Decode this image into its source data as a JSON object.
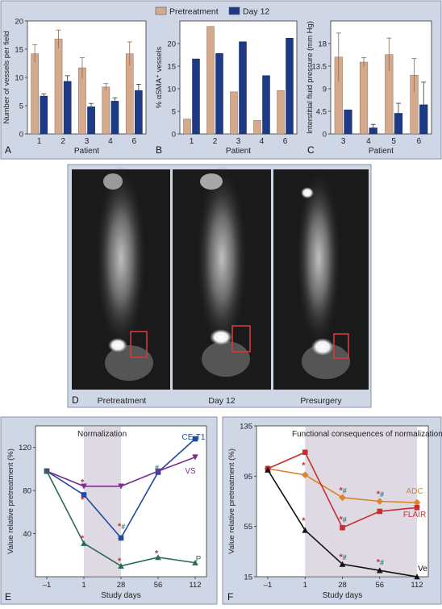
{
  "legend_top": [
    {
      "label": "Pretreatment",
      "color": "#d4a98c"
    },
    {
      "label": "Day 12",
      "color": "#1c3a85"
    }
  ],
  "panel_letters": [
    "A",
    "B",
    "C",
    "D",
    "E",
    "F"
  ],
  "colors": {
    "panel_bg": "#cfd6e6",
    "plot_bg": "#ffffff",
    "pretreatment": "#d4a98c",
    "day12": "#1c3a85",
    "shade": "#ded9e3",
    "mri_bg": "#1a1a1a",
    "box_red": "#d63a3a",
    "star_red": "#c23a3a",
    "hash_teal": "#2e7e80",
    "cet1": "#1f4aa0",
    "vs": "#7a2f8f",
    "p": "#2a6a55",
    "adc": "#d9852a",
    "flair": "#c83030",
    "ve": "#111111"
  },
  "panel_d": {
    "labels": [
      "Pretreatment",
      "Day 12",
      "Presurgery"
    ]
  },
  "chart_data": [
    {
      "id": "A",
      "type": "bar",
      "categories": [
        "1",
        "2",
        "3",
        "4",
        "6"
      ],
      "series": [
        {
          "name": "Pretreatment",
          "values": [
            14.2,
            16.8,
            11.7,
            8.3,
            14.2
          ],
          "errors": [
            1.6,
            1.6,
            1.8,
            0.6,
            2.1
          ]
        },
        {
          "name": "Day 12",
          "values": [
            6.7,
            9.3,
            4.8,
            5.8,
            7.7
          ],
          "errors": [
            0.4,
            1.0,
            0.6,
            0.6,
            1.1
          ]
        }
      ],
      "xlabel": "Patient",
      "ylabel": "Number of vessels per field",
      "ylim": [
        0,
        20
      ],
      "yticks": [
        "0",
        "5",
        "10",
        "15",
        "20"
      ]
    },
    {
      "id": "B",
      "type": "bar",
      "categories": [
        "1",
        "2",
        "3",
        "4",
        "6"
      ],
      "series": [
        {
          "name": "Pretreatment",
          "values": [
            3.3,
            23.8,
            9.3,
            3.0,
            9.6
          ]
        },
        {
          "name": "Day 12",
          "values": [
            16.6,
            17.8,
            20.4,
            12.9,
            21.2
          ]
        }
      ],
      "xlabel": "Patient",
      "ylabel": "% αSMA⁺ vessels",
      "ylim": [
        0,
        25
      ],
      "yticks": [
        "0",
        "5",
        "10",
        "15",
        "20"
      ]
    },
    {
      "id": "C",
      "type": "bar",
      "categories": [
        "3",
        "4",
        "5",
        "6"
      ],
      "series": [
        {
          "name": "Pretreatment",
          "values": [
            15.3,
            14.3,
            15.8,
            11.7
          ],
          "errors": [
            4.8,
            0.9,
            3.3,
            3.3
          ]
        },
        {
          "name": "Day 12",
          "values": [
            4.8,
            1.2,
            4.1,
            5.8
          ],
          "errors": [
            0,
            0.7,
            2.0,
            4.5
          ]
        }
      ],
      "xlabel": "Patient",
      "ylabel": "Interstitial fluid pressure (mm Hg)",
      "ylim": [
        0,
        22.5
      ],
      "yticks": [
        "0",
        "4.5",
        "9",
        "13.5",
        "18"
      ]
    },
    {
      "id": "E",
      "type": "line",
      "title": "Normalization",
      "x": [
        "–1",
        "1",
        "28",
        "56",
        "112"
      ],
      "series": [
        {
          "name": "CE-T1",
          "values": [
            98,
            76,
            36,
            97,
            128
          ]
        },
        {
          "name": "VS",
          "values": [
            98,
            84,
            84,
            98,
            111
          ]
        },
        {
          "name": "P",
          "values": [
            98,
            31,
            10,
            18,
            13
          ]
        }
      ],
      "annotations": [
        {
          "x_index": 1,
          "y": 88,
          "text": "*"
        },
        {
          "x_index": 1,
          "y": 72,
          "text": "*"
        },
        {
          "x_index": 1,
          "y": 36,
          "text": "*"
        },
        {
          "x_index": 2,
          "y": 47,
          "text": "*#"
        },
        {
          "x_index": 2,
          "y": 15,
          "text": "*"
        },
        {
          "x_index": 3,
          "y": 102,
          "text": "#"
        },
        {
          "x_index": 3,
          "y": 22,
          "text": "*"
        }
      ],
      "xlabel": "Study days",
      "ylabel": "Value relative pretreatment (%)",
      "ylim": [
        0,
        140
      ],
      "yticks": [
        "40",
        "80",
        "120"
      ]
    },
    {
      "id": "F",
      "type": "line",
      "title": "Functional consequences of normalization",
      "x": [
        "–1",
        "1",
        "28",
        "56",
        "112"
      ],
      "series": [
        {
          "name": "ADC",
          "values": [
            101,
            96,
            78,
            75,
            74
          ]
        },
        {
          "name": "FLAIR",
          "values": [
            101,
            114,
            54,
            67,
            70
          ]
        },
        {
          "name": "Ve",
          "values": [
            100,
            52,
            25,
            20,
            15
          ]
        }
      ],
      "annotations": [
        {
          "x_index": 1,
          "y": 104,
          "text": "*"
        },
        {
          "x_index": 1,
          "y": 60,
          "text": "*"
        },
        {
          "x_index": 2,
          "y": 84,
          "text": "*#"
        },
        {
          "x_index": 2,
          "y": 61,
          "text": "*#"
        },
        {
          "x_index": 2,
          "y": 31,
          "text": "*#"
        },
        {
          "x_index": 3,
          "y": 81,
          "text": "*#"
        },
        {
          "x_index": 3,
          "y": 27,
          "text": "*#"
        }
      ],
      "xlabel": "Study days",
      "ylabel": "Value relative pretreatment (%)",
      "ylim": [
        15,
        135
      ],
      "yticks": [
        "15",
        "55",
        "95",
        "135"
      ]
    }
  ]
}
